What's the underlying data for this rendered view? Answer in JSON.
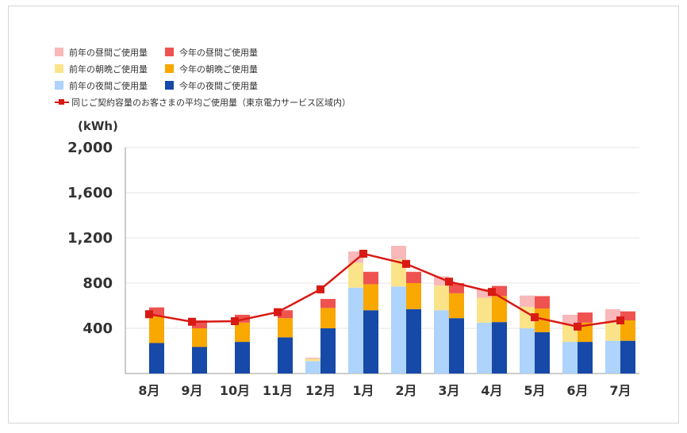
{
  "chart_data": {
    "type": "bar",
    "stacked": true,
    "ylabel": "(kWh)",
    "ylim": [
      0,
      2000
    ],
    "yticks": [
      "2,000",
      "1,600",
      "1,200",
      "800",
      "400"
    ],
    "ytick_values": [
      2000,
      1600,
      1200,
      800,
      400
    ],
    "grid": true,
    "legend_position": "top-left",
    "categories": [
      "8月",
      "9月",
      "10月",
      "11月",
      "12月",
      "1月",
      "2月",
      "3月",
      "4月",
      "5月",
      "6月",
      "7月"
    ],
    "groups": [
      {
        "name": "前年",
        "series": [
          {
            "name": "前年の夜間ご使用量",
            "color": "#aed3fc",
            "values": [
              0,
              0,
              0,
              0,
              110,
              760,
              770,
              560,
              450,
              400,
              280,
              290
            ]
          },
          {
            "name": "前年の朝晩ご使用量",
            "color": "#fbe38a",
            "values": [
              0,
              0,
              0,
              0,
              20,
              220,
              240,
              220,
              220,
              190,
              150,
              170
            ]
          },
          {
            "name": "前年の昼間ご使用量",
            "color": "#f9b8b9",
            "values": [
              0,
              0,
              0,
              0,
              10,
              100,
              120,
              80,
              80,
              100,
              90,
              110
            ]
          }
        ]
      },
      {
        "name": "今年",
        "series": [
          {
            "name": "今年の夜間ご使用量",
            "color": "#1649a8",
            "values": [
              270,
              235,
              280,
              320,
              400,
              560,
              570,
              490,
              455,
              365,
              280,
              290
            ]
          },
          {
            "name": "今年の朝晩ご使用量",
            "color": "#f8a800",
            "values": [
              235,
              165,
              170,
              170,
              180,
              230,
              230,
              220,
              230,
              210,
              170,
              180
            ]
          },
          {
            "name": "今年の昼間ご使用量",
            "color": "#ef5350",
            "values": [
              80,
              70,
              70,
              70,
              80,
              110,
              100,
              90,
              90,
              110,
              90,
              80
            ]
          }
        ]
      }
    ],
    "line": {
      "name": "同じご契約容量のお客さまの平均ご使用量（東京電力サービス区域内）",
      "color": "#d81a14",
      "values": [
        525,
        458,
        463,
        543,
        745,
        1060,
        970,
        813,
        722,
        498,
        415,
        470
      ]
    }
  },
  "legend": {
    "rows": [
      [
        {
          "label": "前年の昼間ご使用量",
          "color": "#f9b8b9"
        },
        {
          "label": "今年の昼間ご使用量",
          "color": "#ef5350"
        }
      ],
      [
        {
          "label": "前年の朝晩ご使用量",
          "color": "#fbe38a"
        },
        {
          "label": "今年の朝晩ご使用量",
          "color": "#f8a800"
        }
      ],
      [
        {
          "label": "前年の夜間ご使用量",
          "color": "#aed3fc"
        },
        {
          "label": "今年の夜間ご使用量",
          "color": "#1649a8"
        }
      ]
    ],
    "line_label": "同じご契約容量のお客さまの平均ご使用量（東京電力サービス区域内）",
    "line_color": "#d81a14"
  }
}
